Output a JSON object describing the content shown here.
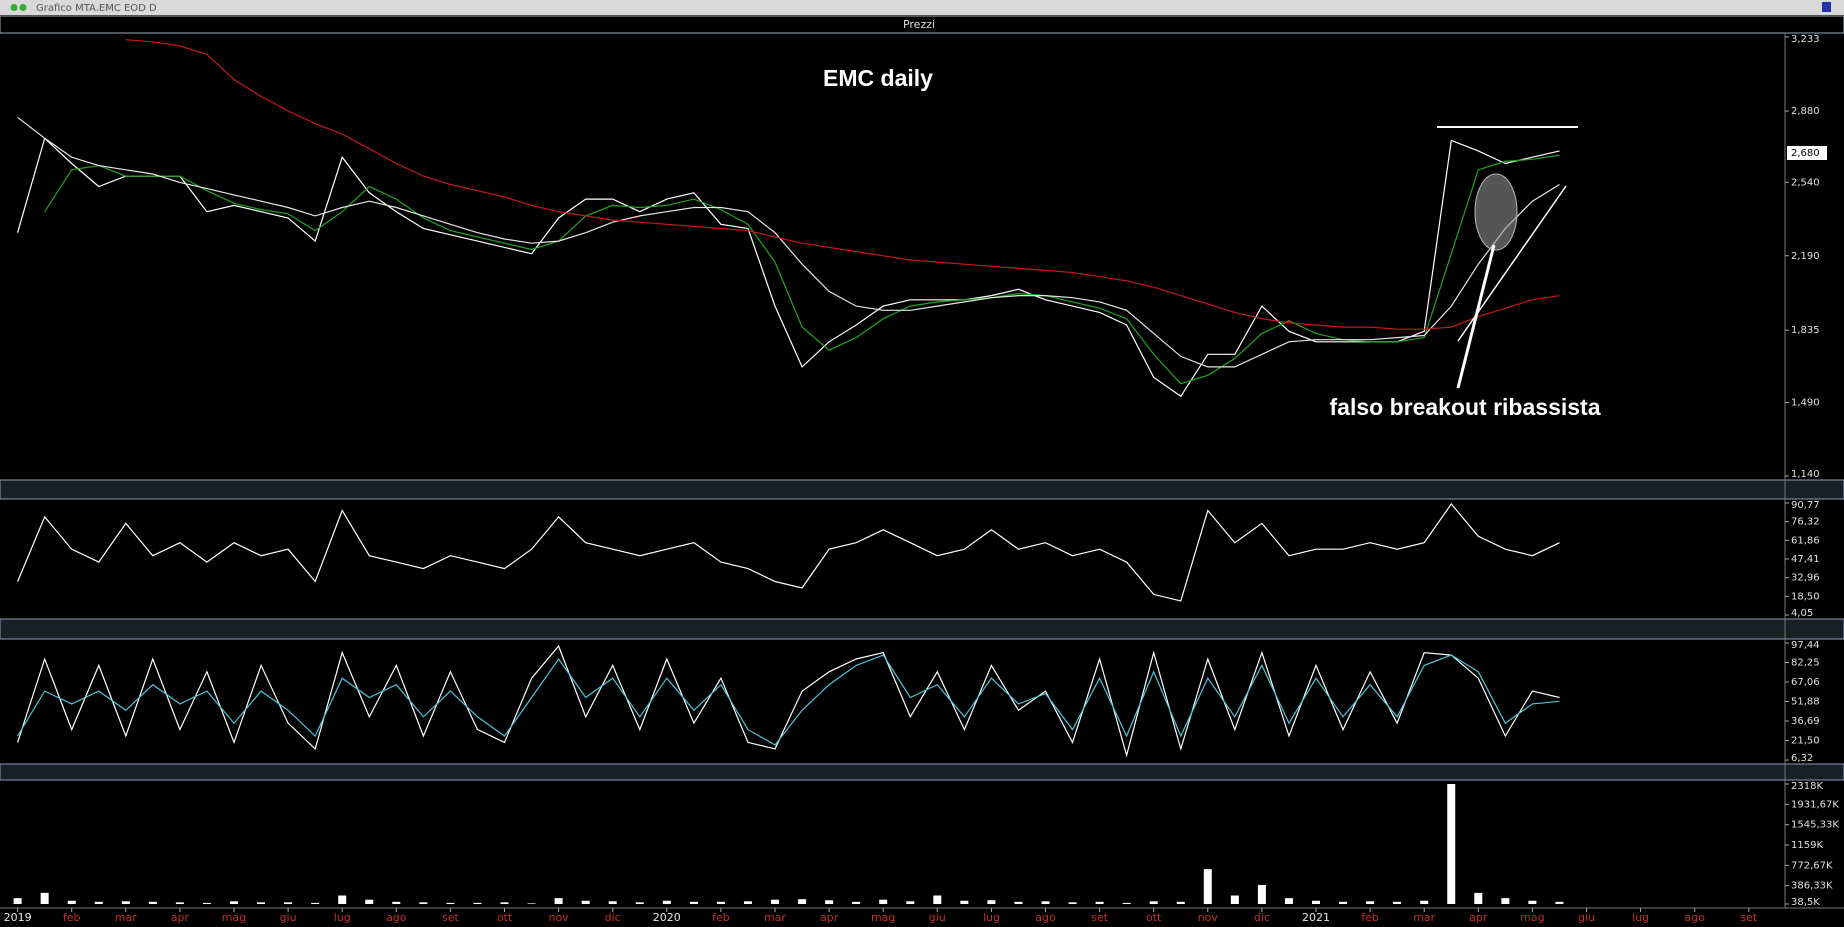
{
  "window": {
    "title": "Grafico MTA.EMC EOD D"
  },
  "chart_data": [
    {
      "type": "line",
      "panel_title": "Prezzi",
      "title": "EMC daily",
      "annotation": "falso breakout ribassista",
      "categories": [
        "2019",
        null,
        "feb",
        null,
        "mar",
        null,
        "apr",
        null,
        "mag",
        null,
        "giu",
        null,
        "lug",
        null,
        "ago",
        null,
        "set",
        null,
        "ott",
        null,
        "nov",
        null,
        "dic",
        null,
        "2020",
        null,
        "feb",
        null,
        "mar",
        null,
        "apr",
        null,
        "mag",
        null,
        "giu",
        null,
        "lug",
        null,
        "ago",
        null,
        "set",
        null,
        "ott",
        null,
        "nov",
        null,
        "dic",
        null,
        "2021",
        null,
        "feb",
        null,
        "mar",
        null,
        "apr",
        null,
        "mag",
        null,
        "giu",
        null,
        "lug",
        null,
        "ago",
        null,
        "set",
        null
      ],
      "ylim": [
        1.14,
        3.233
      ],
      "yticks": [
        {
          "value": 1.14,
          "label": "1,140"
        },
        {
          "value": 1.49,
          "label": "1,490"
        },
        {
          "value": 1.835,
          "label": "1,835"
        },
        {
          "value": 2.19,
          "label": "2,190"
        },
        {
          "value": 2.54,
          "label": "2,540"
        },
        {
          "value": 2.88,
          "label": "2,880"
        },
        {
          "value": 3.233,
          "label": "3,233"
        }
      ],
      "last_price": {
        "value": 2.68,
        "label": "2,680"
      },
      "series": [
        {
          "color": "#ffffff",
          "values": [
            2.3,
            2.75,
            2.63,
            2.52,
            2.57,
            2.57,
            2.57,
            2.4,
            2.43,
            2.4,
            2.37,
            2.26,
            2.66,
            2.49,
            2.4,
            2.32,
            2.29,
            2.26,
            2.23,
            2.2,
            2.37,
            2.46,
            2.46,
            2.4,
            2.46,
            2.49,
            2.34,
            2.32,
            1.95,
            1.66,
            1.78,
            1.86,
            1.95,
            1.98,
            1.98,
            1.98,
            2.0,
            2.03,
            1.98,
            1.95,
            1.92,
            1.86,
            1.61,
            1.52,
            1.72,
            1.72,
            1.95,
            1.83,
            1.78,
            1.78,
            1.78,
            1.78,
            1.83,
            2.74,
            2.69,
            2.63,
            2.66,
            2.69,
            null,
            null,
            null,
            null,
            null,
            null,
            null,
            null
          ]
        },
        {
          "color": "#1fa51f",
          "values": [
            null,
            2.4,
            2.6,
            2.62,
            2.57,
            2.57,
            2.57,
            2.5,
            2.44,
            2.41,
            2.39,
            2.31,
            2.4,
            2.52,
            2.46,
            2.37,
            2.31,
            2.28,
            2.25,
            2.22,
            2.26,
            2.38,
            2.43,
            2.42,
            2.43,
            2.46,
            2.41,
            2.34,
            2.16,
            1.85,
            1.74,
            1.8,
            1.89,
            1.95,
            1.97,
            1.98,
            1.99,
            2.01,
            2.0,
            1.97,
            1.94,
            1.89,
            1.72,
            1.58,
            1.62,
            1.7,
            1.82,
            1.88,
            1.82,
            1.79,
            1.78,
            1.78,
            1.8,
            2.2,
            2.6,
            2.64,
            2.65,
            2.67,
            null,
            null,
            null,
            null,
            null,
            null,
            null,
            null
          ]
        },
        {
          "color": "#e6e6e6",
          "values": [
            2.85,
            2.75,
            2.66,
            2.62,
            2.6,
            2.58,
            2.54,
            2.51,
            2.48,
            2.45,
            2.42,
            2.38,
            2.42,
            2.45,
            2.42,
            2.38,
            2.34,
            2.3,
            2.27,
            2.25,
            2.26,
            2.3,
            2.35,
            2.38,
            2.4,
            2.42,
            2.42,
            2.4,
            2.3,
            2.15,
            2.02,
            1.95,
            1.93,
            1.93,
            1.95,
            1.97,
            1.99,
            2.0,
            2.0,
            1.99,
            1.97,
            1.93,
            1.82,
            1.71,
            1.66,
            1.66,
            1.72,
            1.78,
            1.79,
            1.79,
            1.79,
            1.8,
            1.81,
            1.95,
            2.15,
            2.32,
            2.45,
            2.53,
            null,
            null,
            null,
            null,
            null,
            null,
            null,
            null
          ]
        },
        {
          "color": "#c41a1a",
          "values": [
            null,
            null,
            null,
            null,
            3.22,
            3.21,
            3.19,
            3.15,
            3.03,
            2.95,
            2.88,
            2.82,
            2.77,
            2.7,
            2.63,
            2.57,
            2.53,
            2.5,
            2.47,
            2.43,
            2.4,
            2.38,
            2.36,
            2.35,
            2.34,
            2.33,
            2.32,
            2.31,
            2.28,
            2.25,
            2.23,
            2.21,
            2.19,
            2.17,
            2.16,
            2.15,
            2.14,
            2.13,
            2.12,
            2.11,
            2.09,
            2.07,
            2.04,
            2.0,
            1.96,
            1.92,
            1.89,
            1.87,
            1.86,
            1.85,
            1.85,
            1.84,
            1.84,
            1.85,
            1.9,
            1.94,
            1.98,
            2.0,
            null,
            null,
            null,
            null,
            null,
            null,
            null,
            null
          ]
        }
      ]
    },
    {
      "type": "line",
      "ylim": [
        4.05,
        90.77
      ],
      "yticks": [
        {
          "value": 4.05,
          "label": "4,05"
        },
        {
          "value": 18.5,
          "label": "18,50"
        },
        {
          "value": 32.96,
          "label": "32,96"
        },
        {
          "value": 47.41,
          "label": "47,41"
        },
        {
          "value": 61.86,
          "label": "61,86"
        },
        {
          "value": 76.32,
          "label": "76,32"
        },
        {
          "value": 90.77,
          "label": "90,77"
        }
      ],
      "series": [
        {
          "color": "#ffffff",
          "values": [
            30,
            80,
            55,
            45,
            75,
            50,
            60,
            45,
            60,
            50,
            55,
            30,
            85,
            50,
            45,
            40,
            50,
            45,
            40,
            55,
            80,
            60,
            55,
            50,
            55,
            60,
            45,
            40,
            30,
            25,
            55,
            60,
            70,
            60,
            50,
            55,
            70,
            55,
            60,
            50,
            55,
            45,
            20,
            15,
            85,
            60,
            75,
            50,
            55,
            55,
            60,
            55,
            60,
            90,
            65,
            55,
            50,
            60,
            null,
            null,
            null,
            null,
            null,
            null,
            null,
            null
          ]
        }
      ]
    },
    {
      "type": "line",
      "ylim": [
        6.32,
        97.44
      ],
      "yticks": [
        {
          "value": 6.32,
          "label": "6,32"
        },
        {
          "value": 21.5,
          "label": "21,50"
        },
        {
          "value": 36.69,
          "label": "36,69"
        },
        {
          "value": 51.88,
          "label": "51,88"
        },
        {
          "value": 67.06,
          "label": "67,06"
        },
        {
          "value": 82.25,
          "label": "82,25"
        },
        {
          "value": 97.44,
          "label": "97,44"
        }
      ],
      "series": [
        {
          "color": "#ffffff",
          "values": [
            20,
            85,
            30,
            80,
            25,
            85,
            30,
            75,
            20,
            80,
            35,
            15,
            90,
            40,
            80,
            25,
            75,
            30,
            20,
            70,
            95,
            40,
            80,
            30,
            85,
            35,
            70,
            20,
            15,
            60,
            75,
            85,
            90,
            40,
            75,
            30,
            80,
            45,
            60,
            20,
            85,
            10,
            90,
            15,
            85,
            30,
            90,
            25,
            80,
            30,
            75,
            35,
            90,
            88,
            70,
            25,
            60,
            55,
            null,
            null,
            null,
            null,
            null,
            null,
            null,
            null
          ]
        },
        {
          "color": "#4fc3d9",
          "values": [
            25,
            60,
            50,
            60,
            45,
            65,
            50,
            60,
            35,
            60,
            45,
            25,
            70,
            55,
            65,
            40,
            60,
            40,
            25,
            55,
            85,
            55,
            70,
            40,
            70,
            45,
            65,
            30,
            18,
            45,
            65,
            80,
            88,
            55,
            65,
            40,
            70,
            50,
            58,
            30,
            70,
            25,
            75,
            25,
            70,
            40,
            80,
            35,
            70,
            40,
            65,
            40,
            80,
            88,
            75,
            35,
            50,
            52,
            null,
            null,
            null,
            null,
            null,
            null,
            null,
            null
          ]
        }
      ]
    },
    {
      "type": "bar",
      "ylim": [
        38500,
        2318000
      ],
      "yticks": [
        {
          "value": 38500,
          "label": "38,5K"
        },
        {
          "value": 386330,
          "label": "386,33K"
        },
        {
          "value": 772670,
          "label": "772,67K"
        },
        {
          "value": 1159000,
          "label": "1159K"
        },
        {
          "value": 1545330,
          "label": "1545,33K"
        },
        {
          "value": 1931670,
          "label": "1931,67K"
        },
        {
          "value": 2318000,
          "label": "2318K"
        }
      ],
      "series": [
        {
          "color": "#ffffff",
          "values": [
            150000,
            250000,
            100000,
            80000,
            90000,
            80000,
            70000,
            60000,
            90000,
            70000,
            70000,
            60000,
            200000,
            120000,
            80000,
            70000,
            60000,
            60000,
            70000,
            50000,
            150000,
            100000,
            90000,
            70000,
            100000,
            80000,
            80000,
            90000,
            120000,
            130000,
            110000,
            80000,
            120000,
            90000,
            200000,
            100000,
            110000,
            80000,
            90000,
            70000,
            80000,
            60000,
            90000,
            80000,
            700000,
            200000,
            400000,
            150000,
            100000,
            80000,
            90000,
            80000,
            100000,
            2318000,
            250000,
            150000,
            100000,
            80000,
            null,
            null,
            null,
            null,
            null,
            null,
            null,
            null
          ]
        }
      ]
    }
  ]
}
